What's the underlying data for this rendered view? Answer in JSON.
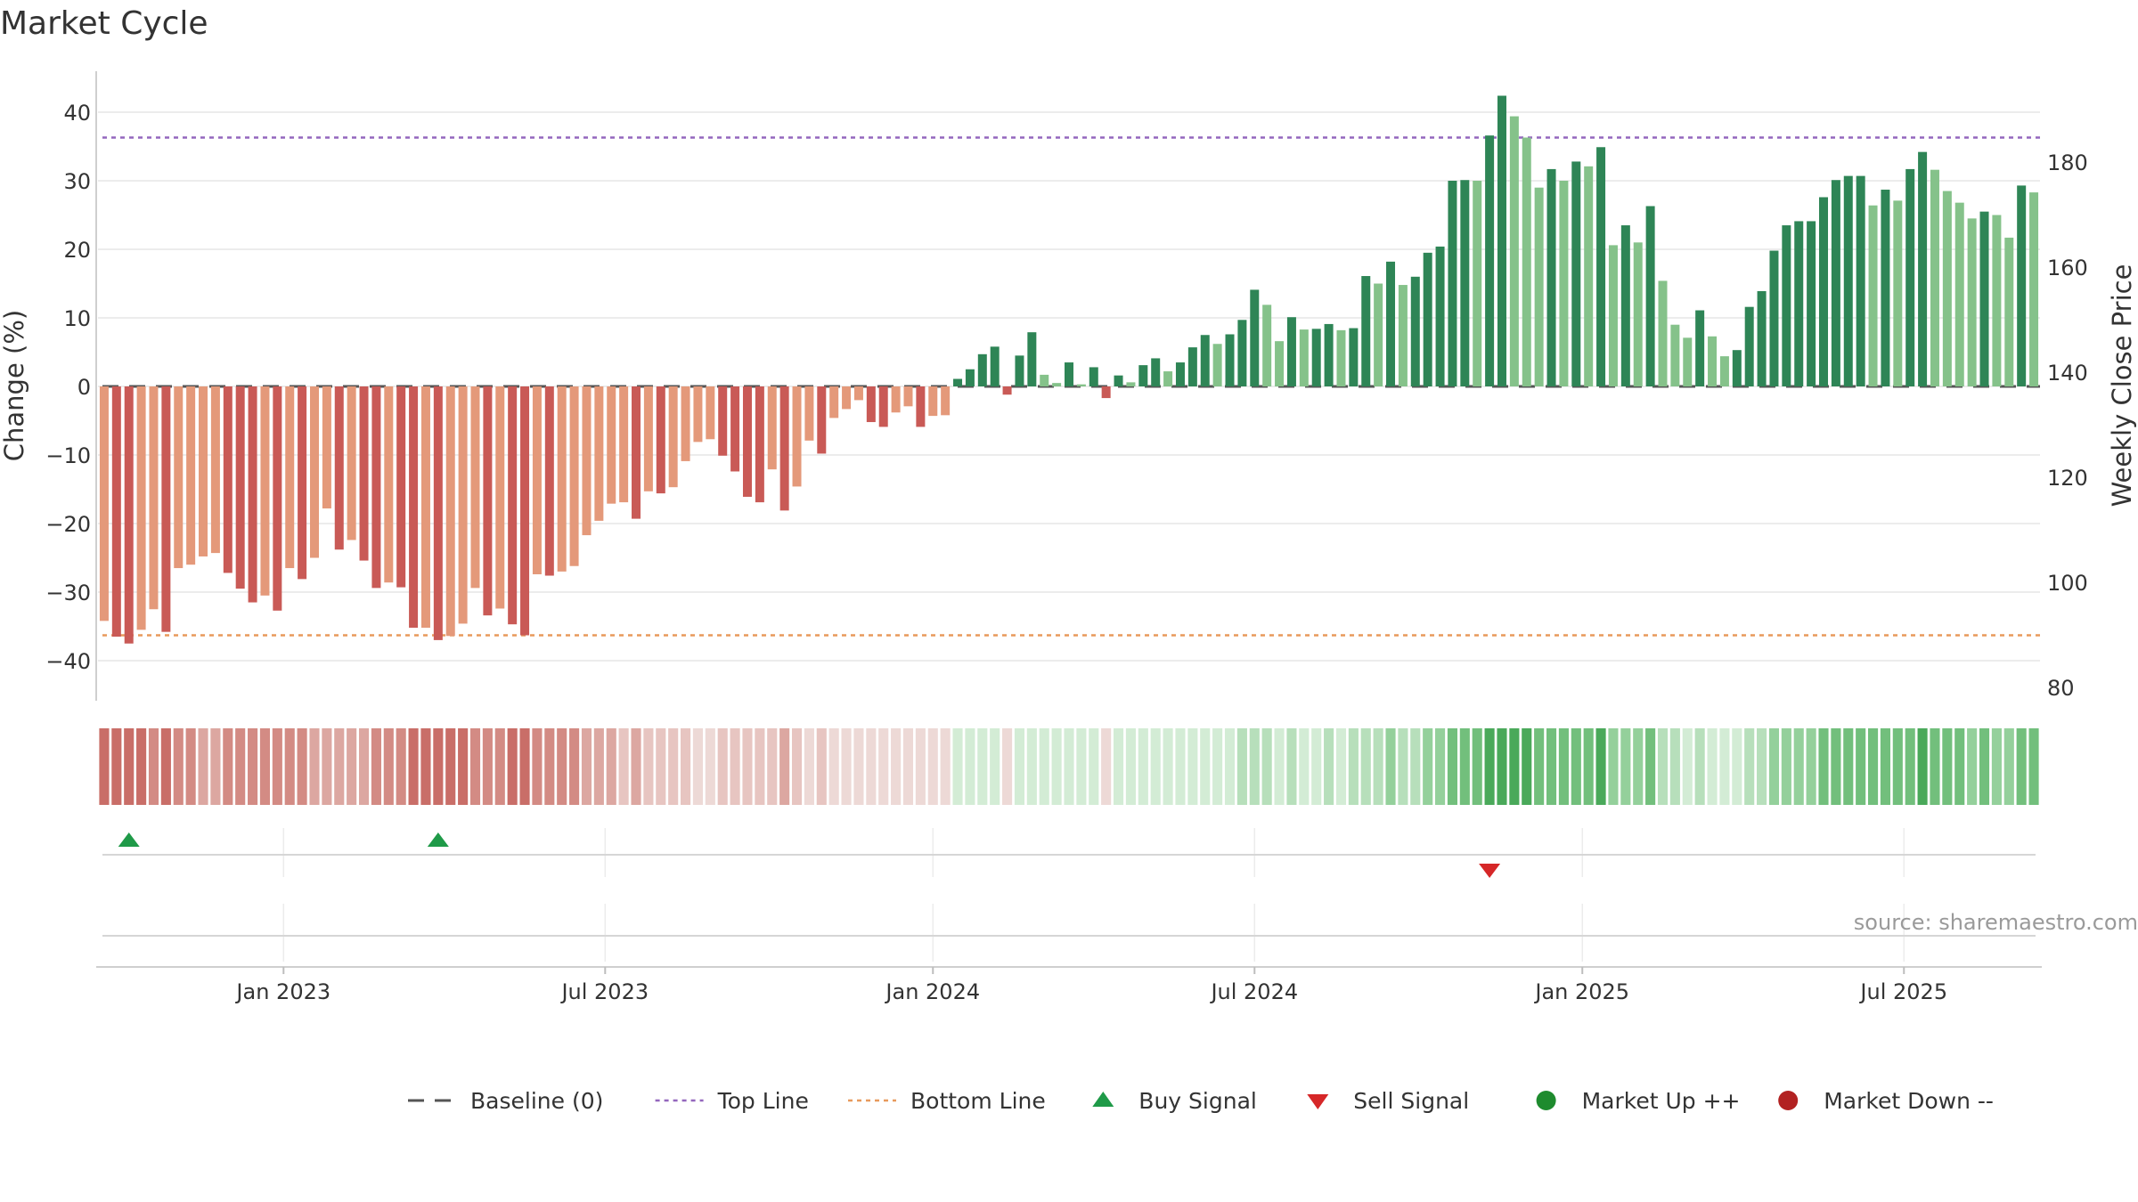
{
  "chart_data": {
    "type": "bar",
    "title": "Market Cycle",
    "source": "source: sharemaestro.com",
    "y_left": {
      "label": "Change (%)",
      "ticks": [
        40,
        30,
        20,
        10,
        0,
        -10,
        -20,
        -30,
        -40
      ],
      "tick_labels": [
        "40",
        "30",
        "20",
        "10",
        "0",
        "−10",
        "−20",
        "−30",
        "−40"
      ],
      "range": [
        -46,
        47
      ]
    },
    "y_right": {
      "label": "Weekly Close Price",
      "ticks": [
        180,
        160,
        140,
        120,
        100,
        80
      ],
      "tick_labels": [
        "180",
        "160",
        "140",
        "120",
        "100",
        "80"
      ]
    },
    "x_axis": {
      "tick_labels": [
        "Jan 2023",
        "Jul 2023",
        "Jan 2024",
        "Jul 2024",
        "Jan 2025",
        "Jul 2025"
      ],
      "tick_weeks": [
        15,
        41,
        67.5,
        93.5,
        120,
        146
      ]
    },
    "top_line": 36.3,
    "bottom_line": -36.3,
    "grid": true,
    "legend_position": "bottom-center",
    "colors": {
      "down_strong": "#c95a56",
      "down_light": "#e4997a",
      "up_strong": "#2e8556",
      "up_light": "#85c28a",
      "top_line": "#9467bd",
      "bottom_line": "#e89a5c",
      "baseline": "#555555",
      "buy": "#1f9a48",
      "sell": "#d62728",
      "market_up": "#1e8b2e",
      "market_down": "#b22222"
    },
    "series": [
      {
        "name": "Change (%)",
        "values": [
          -34.2,
          -36.5,
          -37.5,
          -35.5,
          -32.5,
          -35.8,
          -26.5,
          -26,
          -24.8,
          -24.3,
          -27.2,
          -29.5,
          -31.5,
          -30.5,
          -32.7,
          -26.5,
          -28.1,
          -25,
          -17.8,
          -23.8,
          -22.4,
          -25.4,
          -29.4,
          -28.6,
          -29.3,
          -35.2,
          -35.2,
          -37,
          -36.4,
          -34.6,
          -29.4,
          -33.4,
          -32.4,
          -34.7,
          -36.3,
          -27.4,
          -27.6,
          -27,
          -26.2,
          -21.7,
          -19.6,
          -17.1,
          -16.9,
          -19.3,
          -15.3,
          -15.6,
          -14.7,
          -10.9,
          -8.1,
          -7.7,
          -10.1,
          -12.4,
          -16.1,
          -16.9,
          -12.1,
          -18.1,
          -14.6,
          -7.9,
          -9.8,
          -4.6,
          -3.3,
          -2,
          -5.2,
          -5.9,
          -3.8,
          -2.9,
          -5.9,
          -4.3,
          -4.2,
          1.1,
          2.5,
          4.7,
          5.8,
          -1.2,
          4.5,
          7.9,
          1.7,
          0.5,
          3.5,
          0.3,
          2.8,
          -1.7,
          1.6,
          0.6,
          3.1,
          4.1,
          2.2,
          3.5,
          5.7,
          7.5,
          6.2,
          7.6,
          9.7,
          14.1,
          11.9,
          6.6,
          10.1,
          8.3,
          8.4,
          9.1,
          8.2,
          8.5,
          16.1,
          15,
          18.2,
          14.8,
          16,
          19.5,
          20.4,
          30,
          30.1,
          30,
          36.6,
          42.4,
          39.4,
          36.3,
          29,
          31.7,
          30,
          32.8,
          32.1,
          34.9,
          20.6,
          23.5,
          21,
          26.3,
          15.4,
          9,
          7.1,
          11.1,
          7.3,
          4.4,
          5.3,
          11.6,
          13.9,
          19.8,
          23.5,
          24.1,
          24.1,
          27.6,
          30.1,
          30.7,
          30.7,
          26.4,
          28.7,
          27.1,
          31.7,
          34.2,
          31.6,
          28.5,
          26.8,
          24.5,
          25.5,
          25,
          21.7,
          29.3,
          28.3
        ]
      }
    ],
    "heatmap": {
      "colors_down": [
        "#c96e68",
        "#d38b84",
        "#dca7a1",
        "#e7c5c1",
        "#edd9d6"
      ],
      "colors_up": [
        "#d3ecd5",
        "#b7dfbb",
        "#94d09b",
        "#72bf7c",
        "#4aa95a"
      ]
    },
    "signals": [
      {
        "type": "buy",
        "week": 2
      },
      {
        "type": "buy",
        "week": 27
      },
      {
        "type": "sell",
        "week": 112
      }
    ],
    "legend": [
      {
        "kind": "dash",
        "label": "Baseline (0)"
      },
      {
        "kind": "dot-line-purple",
        "label": "Top Line"
      },
      {
        "kind": "dot-line-orange",
        "label": "Bottom Line"
      },
      {
        "kind": "triangle-up",
        "label": "Buy Signal"
      },
      {
        "kind": "triangle-down",
        "label": "Sell Signal"
      },
      {
        "kind": "circle-green",
        "label": "Market Up ++"
      },
      {
        "kind": "circle-red",
        "label": "Market Down --"
      }
    ]
  }
}
